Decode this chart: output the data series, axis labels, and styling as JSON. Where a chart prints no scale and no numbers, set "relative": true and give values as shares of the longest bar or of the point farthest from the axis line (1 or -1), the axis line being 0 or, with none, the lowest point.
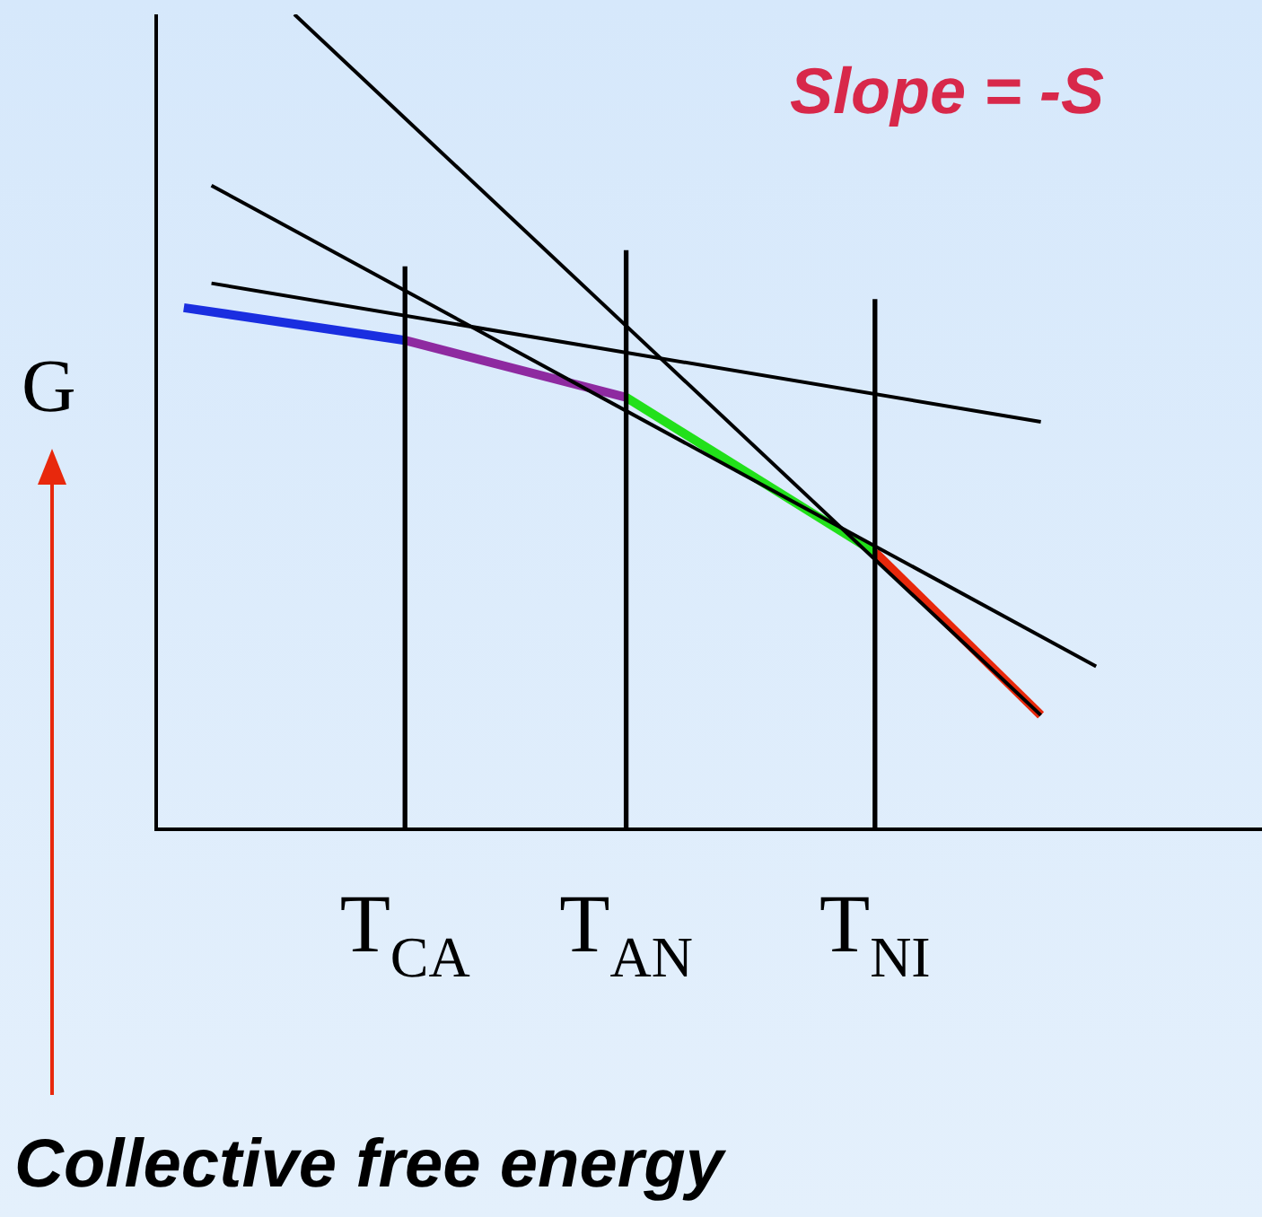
{
  "chart_data": {
    "type": "line",
    "relative": true,
    "ylabel": "G",
    "categories": [
      null,
      null,
      null,
      null,
      null,
      null,
      null,
      null,
      null,
      "T$_{CA}$",
      null,
      null,
      null,
      null,
      null,
      null,
      null,
      "T$_{AN}$",
      null,
      null,
      null,
      null,
      null,
      null,
      null,
      null,
      "T$_{NI}$",
      null,
      null,
      null,
      null,
      null,
      null,
      null,
      null,
      null,
      null,
      null,
      null,
      null,
      null
    ],
    "annotations": [
      "Slope = -S",
      "Collective free energy"
    ],
    "legend": false,
    "marker": "none",
    "line_style": "solid",
    "series": [
      {
        "type": "bar",
        "color": "#000000",
        "values": [
          null,
          null,
          null,
          null,
          null,
          null,
          null,
          null,
          null,
          0.69,
          null,
          null,
          null,
          null,
          null,
          null,
          null,
          0.71,
          null,
          null,
          null,
          null,
          null,
          null,
          null,
          null,
          0.65,
          null,
          null,
          null,
          null,
          null,
          null,
          null,
          null,
          null,
          null,
          null,
          null,
          null,
          null
        ]
      },
      {
        "color": "#000000",
        "values": [
          null,
          null,
          null,
          null,
          null,
          1.0,
          null,
          null,
          null,
          null,
          null,
          null,
          null,
          null,
          null,
          null,
          null,
          null,
          null,
          null,
          null,
          null,
          null,
          null,
          null,
          null,
          null,
          null,
          null,
          null,
          null,
          null,
          0.14,
          null,
          null,
          null,
          null,
          null,
          null,
          null,
          null
        ]
      },
      {
        "color": "#000000",
        "values": [
          null,
          null,
          0.79,
          null,
          null,
          null,
          null,
          null,
          null,
          null,
          null,
          null,
          null,
          null,
          null,
          null,
          null,
          null,
          null,
          null,
          null,
          null,
          null,
          null,
          null,
          null,
          null,
          null,
          null,
          null,
          null,
          null,
          null,
          null,
          0.2,
          null,
          null,
          null,
          null,
          null,
          null
        ]
      },
      {
        "color": "#000000",
        "values": [
          null,
          null,
          0.67,
          null,
          null,
          null,
          null,
          null,
          null,
          null,
          null,
          null,
          null,
          null,
          null,
          null,
          null,
          null,
          null,
          null,
          null,
          null,
          null,
          null,
          null,
          null,
          null,
          null,
          null,
          null,
          null,
          null,
          0.5,
          null,
          null,
          null,
          null,
          null,
          null,
          null,
          null
        ]
      },
      {
        "color": "#1a2ee0",
        "values": [
          null,
          0.64,
          null,
          null,
          null,
          null,
          null,
          null,
          null,
          0.6,
          null,
          null,
          null,
          null,
          null,
          null,
          null,
          null,
          null,
          null,
          null,
          null,
          null,
          null,
          null,
          null,
          null,
          null,
          null,
          null,
          null,
          null,
          null,
          null,
          null,
          null,
          null,
          null,
          null,
          null,
          null
        ]
      },
      {
        "color": "#8e2aa0",
        "values": [
          null,
          null,
          null,
          null,
          null,
          null,
          null,
          null,
          null,
          0.6,
          null,
          null,
          null,
          null,
          null,
          null,
          null,
          0.53,
          null,
          null,
          null,
          null,
          null,
          null,
          null,
          null,
          null,
          null,
          null,
          null,
          null,
          null,
          null,
          null,
          null,
          null,
          null,
          null,
          null,
          null,
          null
        ]
      },
      {
        "color": "#22e01a",
        "values": [
          null,
          null,
          null,
          null,
          null,
          null,
          null,
          null,
          null,
          null,
          null,
          null,
          null,
          null,
          null,
          null,
          null,
          0.53,
          null,
          null,
          null,
          null,
          null,
          null,
          null,
          null,
          0.34,
          null,
          null,
          null,
          null,
          null,
          null,
          null,
          null,
          null,
          null,
          null,
          null,
          null,
          null
        ]
      },
      {
        "color": "#e8280c",
        "values": [
          null,
          null,
          null,
          null,
          null,
          null,
          null,
          null,
          null,
          null,
          null,
          null,
          null,
          null,
          null,
          null,
          null,
          null,
          null,
          null,
          null,
          null,
          null,
          null,
          null,
          null,
          0.34,
          null,
          null,
          null,
          null,
          null,
          0.14,
          null,
          null,
          null,
          null,
          null,
          null,
          null,
          null
        ]
      }
    ]
  }
}
